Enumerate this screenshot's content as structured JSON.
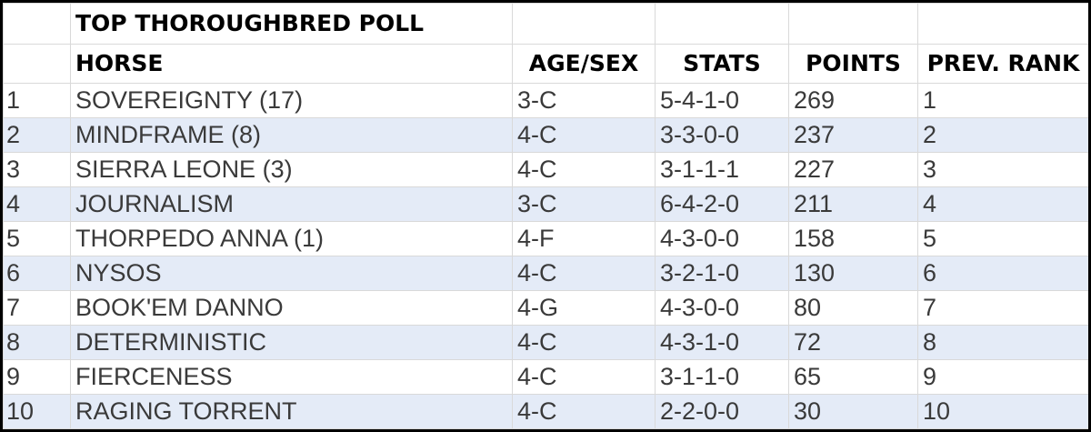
{
  "title": "TOP THOROUGHBRED POLL",
  "columns": {
    "rank": "",
    "horse": "HORSE",
    "age_sex": "AGE/SEX",
    "stats": "STATS",
    "points": "POINTS",
    "prev_rank": "PREV. RANK"
  },
  "rows": [
    {
      "rank": "1",
      "horse": "SOVEREIGNTY (17)",
      "age_sex": "3-C",
      "stats": "5-4-1-0",
      "points": "269",
      "prev_rank": "1"
    },
    {
      "rank": "2",
      "horse": "MINDFRAME (8)",
      "age_sex": "4-C",
      "stats": "3-3-0-0",
      "points": "237",
      "prev_rank": "2"
    },
    {
      "rank": "3",
      "horse": "SIERRA LEONE (3)",
      "age_sex": "4-C",
      "stats": "3-1-1-1",
      "points": "227",
      "prev_rank": "3"
    },
    {
      "rank": "4",
      "horse": "JOURNALISM",
      "age_sex": "3-C",
      "stats": "6-4-2-0",
      "points": "211",
      "prev_rank": "4"
    },
    {
      "rank": "5",
      "horse": "THORPEDO ANNA (1)",
      "age_sex": "4-F",
      "stats": "4-3-0-0",
      "points": "158",
      "prev_rank": "5"
    },
    {
      "rank": "6",
      "horse": "NYSOS",
      "age_sex": "4-C",
      "stats": "3-2-1-0",
      "points": "130",
      "prev_rank": "6"
    },
    {
      "rank": "7",
      "horse": "BOOK'EM DANNO",
      "age_sex": "4-G",
      "stats": "4-3-0-0",
      "points": "80",
      "prev_rank": "7"
    },
    {
      "rank": "8",
      "horse": "DETERMINISTIC",
      "age_sex": "4-C",
      "stats": "4-3-1-0",
      "points": "72",
      "prev_rank": "8"
    },
    {
      "rank": "9",
      "horse": "FIERCENESS",
      "age_sex": "4-C",
      "stats": "3-1-1-0",
      "points": "65",
      "prev_rank": "9"
    },
    {
      "rank": "10",
      "horse": "RAGING TORRENT",
      "age_sex": "4-C",
      "stats": "2-2-0-0",
      "points": "30",
      "prev_rank": "10"
    }
  ],
  "colors": {
    "band": "#e4ebf7",
    "gridline": "#d9d9d9",
    "cell_text": "#3a3a3a",
    "header_text": "#000000",
    "frame_border": "#000000"
  }
}
